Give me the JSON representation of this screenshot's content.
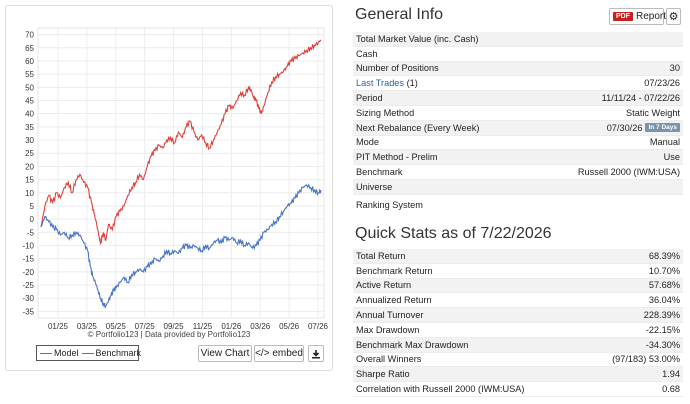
{
  "chart_data": {
    "type": "line",
    "yticks": [
      "70",
      "65",
      "60",
      "55",
      "50",
      "45",
      "40",
      "35",
      "30",
      "25",
      "20",
      "15",
      "10",
      "5",
      "0",
      "-5",
      "-10",
      "-15",
      "-20",
      "-25",
      "-30",
      "-35"
    ],
    "ylim": [
      -37.5,
      72.5
    ],
    "xticks": [
      "01/25",
      "03/25",
      "05/25",
      "07/25",
      "09/25",
      "11/25",
      "01/26",
      "03/26",
      "05/26",
      "07/26"
    ],
    "series": [
      {
        "name": "Model",
        "color": "#e0403c",
        "points": [
          [
            0,
            -3
          ],
          [
            3,
            5
          ],
          [
            6,
            9
          ],
          [
            9,
            6
          ],
          [
            12,
            10
          ],
          [
            15,
            8
          ],
          [
            18,
            12
          ],
          [
            21,
            14
          ],
          [
            24,
            10
          ],
          [
            27,
            15
          ],
          [
            30,
            17
          ],
          [
            33,
            14
          ],
          [
            36,
            12
          ],
          [
            39,
            6
          ],
          [
            41,
            2
          ],
          [
            43,
            -2
          ],
          [
            45,
            -7
          ],
          [
            46,
            -9
          ],
          [
            48,
            -5
          ],
          [
            50,
            -8
          ],
          [
            52,
            -2
          ],
          [
            55,
            -4
          ],
          [
            58,
            1
          ],
          [
            61,
            3
          ],
          [
            64,
            5
          ],
          [
            67,
            9
          ],
          [
            70,
            12
          ],
          [
            73,
            14
          ],
          [
            76,
            17
          ],
          [
            79,
            15
          ],
          [
            82,
            20
          ],
          [
            85,
            24
          ],
          [
            88,
            26
          ],
          [
            91,
            28
          ],
          [
            94,
            27
          ],
          [
            97,
            30
          ],
          [
            100,
            31
          ],
          [
            103,
            29
          ],
          [
            106,
            33
          ],
          [
            109,
            31
          ],
          [
            112,
            35
          ],
          [
            115,
            37
          ],
          [
            118,
            33
          ],
          [
            121,
            30
          ],
          [
            124,
            32
          ],
          [
            127,
            29
          ],
          [
            130,
            27
          ],
          [
            133,
            30
          ],
          [
            136,
            33
          ],
          [
            139,
            36
          ],
          [
            142,
            40
          ],
          [
            145,
            43
          ],
          [
            148,
            42
          ],
          [
            151,
            45
          ],
          [
            154,
            48
          ],
          [
            157,
            47
          ],
          [
            160,
            50
          ],
          [
            162,
            49
          ],
          [
            164,
            46
          ],
          [
            166,
            45
          ],
          [
            168,
            42
          ],
          [
            170,
            40
          ],
          [
            172,
            43
          ],
          [
            175,
            48
          ],
          [
            178,
            52
          ],
          [
            181,
            54
          ],
          [
            184,
            55
          ],
          [
            187,
            56
          ],
          [
            190,
            58
          ],
          [
            193,
            60
          ],
          [
            196,
            61
          ],
          [
            199,
            62
          ],
          [
            202,
            63
          ],
          [
            205,
            64
          ],
          [
            208,
            65
          ],
          [
            211,
            66
          ],
          [
            214,
            67
          ],
          [
            216,
            68
          ]
        ]
      },
      {
        "name": "Benchmark",
        "color": "#4a74c4",
        "points": [
          [
            0,
            -3
          ],
          [
            3,
            1
          ],
          [
            6,
            -1
          ],
          [
            9,
            -3
          ],
          [
            12,
            -4
          ],
          [
            15,
            -6
          ],
          [
            18,
            -5
          ],
          [
            21,
            -7
          ],
          [
            24,
            -6
          ],
          [
            27,
            -5
          ],
          [
            30,
            -6
          ],
          [
            33,
            -9
          ],
          [
            36,
            -12
          ],
          [
            38,
            -18
          ],
          [
            40,
            -22
          ],
          [
            42,
            -24
          ],
          [
            44,
            -27
          ],
          [
            46,
            -30
          ],
          [
            48,
            -32
          ],
          [
            50,
            -33
          ],
          [
            52,
            -31
          ],
          [
            54,
            -29
          ],
          [
            56,
            -27
          ],
          [
            58,
            -26
          ],
          [
            61,
            -24
          ],
          [
            64,
            -22
          ],
          [
            67,
            -24
          ],
          [
            70,
            -21
          ],
          [
            73,
            -20
          ],
          [
            76,
            -19
          ],
          [
            79,
            -20
          ],
          [
            82,
            -18
          ],
          [
            85,
            -17
          ],
          [
            88,
            -15
          ],
          [
            91,
            -16
          ],
          [
            94,
            -14
          ],
          [
            97,
            -12
          ],
          [
            100,
            -13
          ],
          [
            103,
            -12
          ],
          [
            106,
            -13
          ],
          [
            109,
            -11
          ],
          [
            112,
            -10
          ],
          [
            115,
            -11
          ],
          [
            118,
            -10
          ],
          [
            121,
            -11
          ],
          [
            124,
            -12
          ],
          [
            127,
            -10
          ],
          [
            130,
            -11
          ],
          [
            133,
            -9
          ],
          [
            136,
            -8
          ],
          [
            139,
            -9
          ],
          [
            142,
            -7
          ],
          [
            145,
            -8
          ],
          [
            148,
            -7
          ],
          [
            151,
            -9
          ],
          [
            154,
            -8
          ],
          [
            157,
            -10
          ],
          [
            160,
            -9
          ],
          [
            163,
            -11
          ],
          [
            166,
            -10
          ],
          [
            169,
            -8
          ],
          [
            172,
            -5
          ],
          [
            175,
            -4
          ],
          [
            178,
            -2
          ],
          [
            181,
            -1
          ],
          [
            184,
            1
          ],
          [
            187,
            3
          ],
          [
            190,
            5
          ],
          [
            193,
            6
          ],
          [
            196,
            8
          ],
          [
            199,
            10
          ],
          [
            202,
            12
          ],
          [
            205,
            13
          ],
          [
            208,
            12
          ],
          [
            211,
            11
          ],
          [
            214,
            10
          ],
          [
            216,
            11
          ]
        ]
      }
    ],
    "legend": {
      "model_label": "Model",
      "benchmark_label": "Benchmark"
    },
    "credit": "© Portfolio123 | Data provided by Portfolio123"
  },
  "chart_buttons": {
    "view_chart": "View Chart",
    "embed": "</> embed"
  },
  "general": {
    "title": "General Info",
    "report_label": "Report",
    "pdf_badge": "PDF",
    "rows": [
      {
        "label": "Total Market Value (inc. Cash)",
        "value": ""
      },
      {
        "label": "Cash",
        "value": ""
      },
      {
        "label": "Number of Positions",
        "value": "30"
      },
      {
        "label": "Last Trades",
        "suffix": "(1)",
        "value": "07/23/26"
      },
      {
        "label": "Period",
        "value": "11/11/24 - 07/22/26"
      },
      {
        "label": "Sizing Method",
        "value": "Static Weight"
      },
      {
        "label": "Next Rebalance (Every Week)",
        "value": "07/30/26",
        "badge": "In 7 Days"
      },
      {
        "label": "Mode",
        "value": "Manual"
      },
      {
        "label": "PIT Method - Prelim",
        "value": "Use"
      },
      {
        "label": "Benchmark",
        "value": "Russell 2000 (IWM:USA)"
      },
      {
        "label": "Universe",
        "value": ""
      },
      {
        "label": "Ranking System",
        "value": ""
      }
    ]
  },
  "stats": {
    "title": "Quick Stats as of 7/22/2026",
    "rows": [
      {
        "label": "Total Return",
        "value": "68.39%"
      },
      {
        "label": "Benchmark Return",
        "value": "10.70%"
      },
      {
        "label": "Active Return",
        "value": "57.68%"
      },
      {
        "label": "Annualized Return",
        "value": "36.04%"
      },
      {
        "label": "Annual Turnover",
        "value": "228.39%"
      },
      {
        "label": "Max Drawdown",
        "value": "-22.15%"
      },
      {
        "label": "Benchmark Max Drawdown",
        "value": "-34.30%"
      },
      {
        "label": "Overall Winners",
        "value": "(97/183) 53.00%"
      },
      {
        "label": "Sharpe Ratio",
        "value": "1.94"
      },
      {
        "label": "Correlation with Russell 2000 (IWM:USA)",
        "value": "0.68"
      }
    ]
  }
}
